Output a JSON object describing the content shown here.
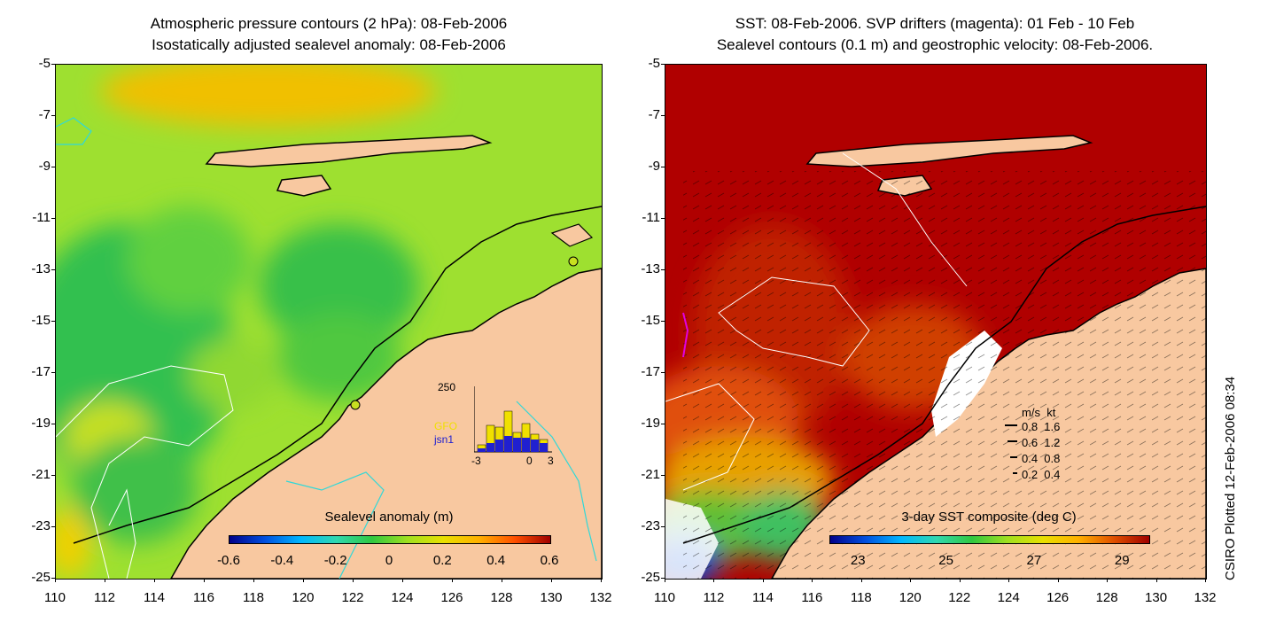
{
  "left_panel": {
    "title_line1": "Atmospheric pressure contours (2 hPa): 08-Feb-2006",
    "title_line2": "Isostatically adjusted sealevel anomaly: 08-Feb-2006",
    "colorbar": {
      "label": "Sealevel anomaly (m)",
      "ticks": [
        "-0.6",
        "-0.4",
        "-0.2",
        "0",
        "0.2",
        "0.4",
        "0.6"
      ]
    },
    "histogram": {
      "ymax_label": "250",
      "series": [
        "GFO",
        "jsn1"
      ],
      "series_colors": [
        "#f0e000",
        "#2020d0"
      ],
      "x_ticks": [
        "-3",
        "0",
        "3"
      ]
    }
  },
  "right_panel": {
    "title_line1": "SST: 08-Feb-2006. SVP drifters (magenta): 01 Feb - 10 Feb",
    "title_line2": "Sealevel contours (0.1 m) and geostrophic velocity: 08-Feb-2006.",
    "colorbar": {
      "label": "3-day SST composite (deg C)",
      "ticks": [
        "23",
        "25",
        "27",
        "29"
      ]
    },
    "velocity_legend": {
      "header_ms": "m/s",
      "header_kt": "kt",
      "rows": [
        {
          "ms": "0.8",
          "kt": "1.6"
        },
        {
          "ms": "0.6",
          "kt": "1.2"
        },
        {
          "ms": "0.4",
          "kt": "0.8"
        },
        {
          "ms": "0.2",
          "kt": "0.4"
        }
      ]
    }
  },
  "axes": {
    "lat_ticks": [
      "-5",
      "-7",
      "-9",
      "-11",
      "-13",
      "-15",
      "-17",
      "-19",
      "-21",
      "-23",
      "-25"
    ],
    "lon_ticks": [
      "110",
      "112",
      "114",
      "116",
      "118",
      "120",
      "122",
      "124",
      "126",
      "128",
      "130",
      "132"
    ]
  },
  "credit": "CSIRO Plotted 12-Feb-2006 08:34",
  "colors": {
    "land": "#f8c8a0",
    "coast": "#000000",
    "ssl_ramp": [
      "#00008a",
      "#0050e0",
      "#00b8ff",
      "#30d8b0",
      "#30c840",
      "#a0e020",
      "#e8e000",
      "#ffb000",
      "#ff5000",
      "#a00000"
    ],
    "sst_ramp": [
      "#00008a",
      "#0050e0",
      "#00b8ff",
      "#30d8b0",
      "#30c840",
      "#a0e020",
      "#e8e000",
      "#ffb000",
      "#e05000",
      "#a00000"
    ]
  }
}
